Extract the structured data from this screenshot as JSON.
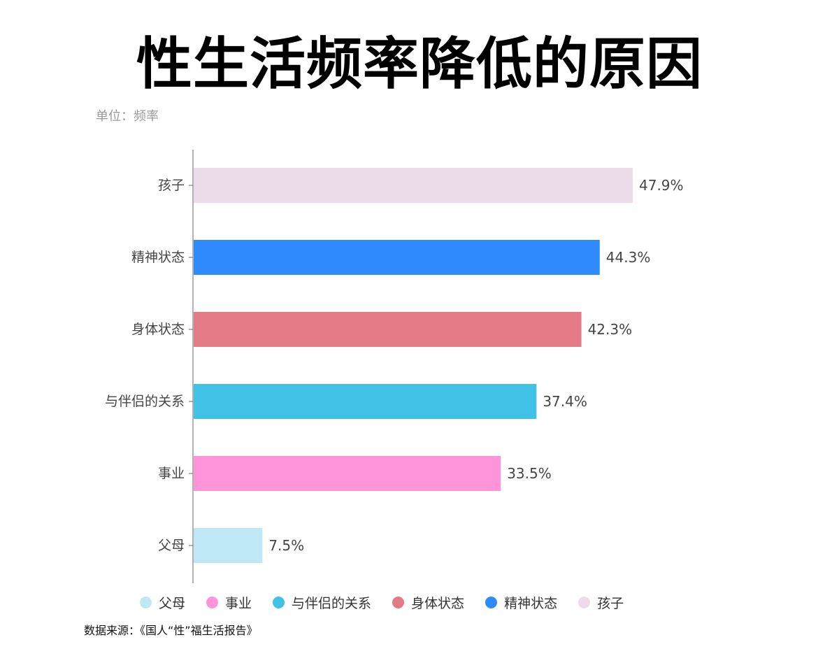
{
  "title": "性生活频率降低的原因",
  "unit": "单位：频率",
  "source": "数据来源：《国人“性”福生活报告》",
  "chart_data": {
    "type": "bar",
    "orientation": "horizontal",
    "categories": [
      "孩子",
      "精神状态",
      "身体状态",
      "与伴侣的关系",
      "事业",
      "父母"
    ],
    "values": [
      47.9,
      44.3,
      42.3,
      37.4,
      33.5,
      7.5
    ],
    "value_labels": [
      "47.9%",
      "44.3%",
      "42.3%",
      "37.4%",
      "33.5%",
      "7.5%"
    ],
    "colors": [
      "#ecdce9",
      "#2f8bfd",
      "#e57a87",
      "#40c1e6",
      "#ff94d8",
      "#bee8f5"
    ],
    "xlim": [
      0,
      48
    ],
    "grid": false,
    "legend_position": "bottom",
    "legend": [
      {
        "label": "父母",
        "color": "#bee8f5"
      },
      {
        "label": "事业",
        "color": "#ff94d8"
      },
      {
        "label": "与伴侣的关系",
        "color": "#40c1e6"
      },
      {
        "label": "身体状态",
        "color": "#e57a87"
      },
      {
        "label": "精神状态",
        "color": "#2f8bfd"
      },
      {
        "label": "孩子",
        "color": "#ecdce9"
      }
    ]
  }
}
